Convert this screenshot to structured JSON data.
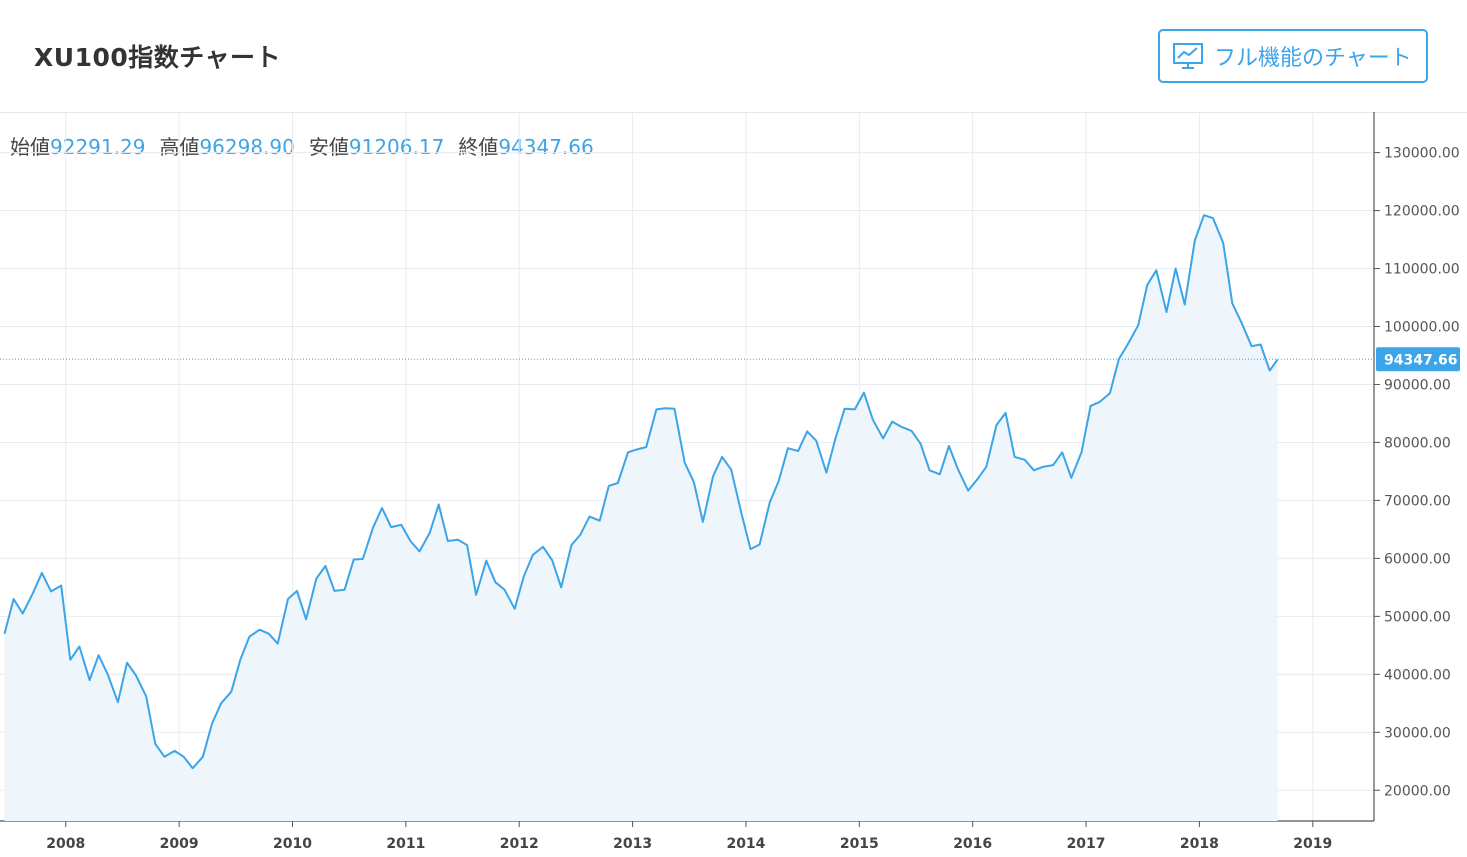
{
  "header": {
    "title": "XU100指数チャート",
    "full_chart_label": "フル機能のチャート",
    "full_chart_icon": "line-chart-icon"
  },
  "ohlc": {
    "open_label": "始値",
    "open_value": "92291.29",
    "high_label": "高値",
    "high_value": "96298.90",
    "low_label": "安値",
    "low_value": "91206.17",
    "close_label": "終値",
    "close_value": "94347.66"
  },
  "colors": {
    "line": "#3ca4e8",
    "fill": "#eef6fc",
    "grid": "#e8ecef",
    "accent": "#3ca4e8"
  },
  "chart_data": {
    "type": "area",
    "title": "XU100指数チャート",
    "xlabel": "",
    "ylabel": "",
    "x_ticks": [
      "2008",
      "2009",
      "2010",
      "2011",
      "2012",
      "2013",
      "2014",
      "2015",
      "2016",
      "2017",
      "2018",
      "2019"
    ],
    "y_ticks": [
      "20000.00",
      "30000.00",
      "40000.00",
      "50000.00",
      "60000.00",
      "70000.00",
      "80000.00",
      "90000.00",
      "100000.00",
      "110000.00",
      "120000.00",
      "130000.00"
    ],
    "xlim": [
      2007.42,
      2019.54
    ],
    "ylim": [
      14700,
      137000
    ],
    "grid": true,
    "last_value_label": "94347.66",
    "last_value": 94347.66,
    "x": [
      2007.46,
      2007.54,
      2007.62,
      2007.71,
      2007.79,
      2007.87,
      2007.96,
      2008.04,
      2008.12,
      2008.21,
      2008.29,
      2008.37,
      2008.46,
      2008.54,
      2008.62,
      2008.71,
      2008.79,
      2008.87,
      2008.96,
      2009.04,
      2009.12,
      2009.21,
      2009.29,
      2009.37,
      2009.46,
      2009.54,
      2009.62,
      2009.71,
      2009.79,
      2009.87,
      2009.96,
      2010.04,
      2010.12,
      2010.21,
      2010.29,
      2010.37,
      2010.46,
      2010.54,
      2010.62,
      2010.71,
      2010.79,
      2010.87,
      2010.96,
      2011.04,
      2011.12,
      2011.21,
      2011.29,
      2011.37,
      2011.46,
      2011.54,
      2011.62,
      2011.71,
      2011.79,
      2011.87,
      2011.96,
      2012.04,
      2012.12,
      2012.21,
      2012.29,
      2012.37,
      2012.46,
      2012.54,
      2012.62,
      2012.71,
      2012.79,
      2012.87,
      2012.96,
      2013.04,
      2013.12,
      2013.21,
      2013.29,
      2013.37,
      2013.46,
      2013.54,
      2013.62,
      2013.71,
      2013.79,
      2013.87,
      2013.96,
      2014.04,
      2014.12,
      2014.21,
      2014.29,
      2014.37,
      2014.46,
      2014.54,
      2014.62,
      2014.71,
      2014.79,
      2014.87,
      2014.96,
      2015.04,
      2015.12,
      2015.21,
      2015.29,
      2015.37,
      2015.46,
      2015.54,
      2015.62,
      2015.71,
      2015.79,
      2015.87,
      2015.96,
      2016.04,
      2016.12,
      2016.21,
      2016.29,
      2016.37,
      2016.46,
      2016.54,
      2016.62,
      2016.71,
      2016.79,
      2016.87,
      2016.96,
      2017.04,
      2017.12,
      2017.21,
      2017.29,
      2017.37,
      2017.46,
      2017.54,
      2017.62,
      2017.71,
      2017.79,
      2017.87,
      2017.96,
      2018.04,
      2018.12,
      2018.21,
      2018.29,
      2018.37,
      2018.46,
      2018.54,
      2018.62,
      2018.69
    ],
    "values": [
      47000,
      53000,
      50500,
      54000,
      57500,
      54300,
      55300,
      42500,
      44800,
      39000,
      43300,
      40000,
      35200,
      42000,
      39800,
      36200,
      28000,
      25800,
      26800,
      25800,
      23800,
      25800,
      31500,
      35000,
      37000,
      42500,
      46500,
      47700,
      47000,
      45300,
      53000,
      54400,
      49500,
      56500,
      58700,
      54400,
      54600,
      59800,
      59900,
      65300,
      68700,
      65400,
      65800,
      63000,
      61200,
      64400,
      69300,
      63000,
      63200,
      62300,
      53700,
      59600,
      55900,
      54600,
      51300,
      56900,
      60600,
      62000,
      59700,
      55000,
      62300,
      64100,
      67200,
      66500,
      72500,
      73000,
      78300,
      78800,
      79200,
      85700,
      85900,
      85800,
      76500,
      73200,
      66300,
      74200,
      77500,
      75300,
      67800,
      61600,
      62400,
      69700,
      73400,
      79000,
      78500,
      81900,
      80300,
      74800,
      80700,
      85800,
      85700,
      88600,
      83900,
      80700,
      83600,
      82700,
      82000,
      79800,
      75200,
      74500,
      79400,
      75400,
      71700,
      73600,
      75800,
      83000,
      85100,
      77500,
      77000,
      75200,
      75800,
      76100,
      78300,
      73900,
      78300,
      86300,
      87000,
      88500,
      94400,
      97000,
      100200,
      107200,
      109700,
      102500,
      110000,
      103800,
      114900,
      119200,
      118700,
      114400,
      104000,
      100700,
      96600,
      96900,
      92400,
      94300
    ]
  }
}
